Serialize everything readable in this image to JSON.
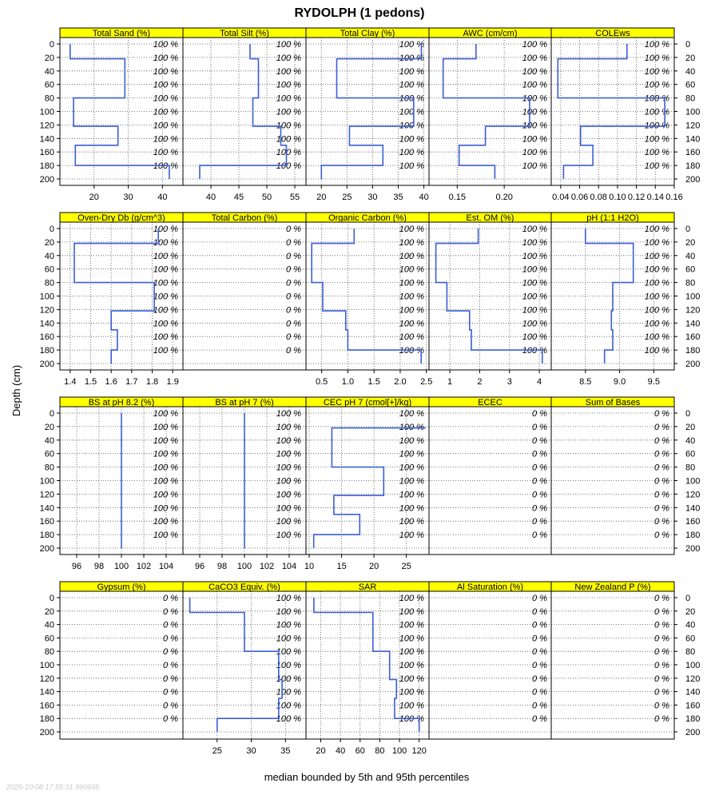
{
  "figure": {
    "title": "RYDOLPH (1 pedons)",
    "ylabel": "Depth (cm)",
    "xlabel": "median bounded by 5th and 95th percentiles",
    "timestamp": "2025-10-08 17:55:31.960695",
    "line_color": "#3a5fd6",
    "strip_color": "#ffff00"
  },
  "chart_data": {
    "type": "line",
    "depth_range": [
      0,
      200
    ],
    "depth_ticks": [
      0,
      20,
      40,
      60,
      80,
      100,
      120,
      140,
      160,
      180,
      200
    ],
    "pct_depths": [
      0,
      20,
      40,
      60,
      80,
      100,
      120,
      140,
      160,
      180
    ],
    "panels": [
      {
        "label": "Total Sand (%)",
        "pct": "100 %",
        "xlim": [
          10,
          46
        ],
        "ticks": [
          20,
          30,
          40
        ],
        "tick_labels": [
          "20",
          "30",
          "40"
        ],
        "profile": [
          [
            13,
            0
          ],
          [
            13,
            22
          ],
          [
            29,
            22
          ],
          [
            29,
            80
          ],
          [
            14,
            80
          ],
          [
            14,
            122
          ],
          [
            27,
            122
          ],
          [
            27,
            150
          ],
          [
            14.5,
            150
          ],
          [
            14.5,
            180
          ],
          [
            42,
            180
          ],
          [
            42,
            200
          ]
        ]
      },
      {
        "label": "Total Silt (%)",
        "pct": "100 %",
        "xlim": [
          35,
          57
        ],
        "ticks": [
          40,
          45,
          50,
          55
        ],
        "tick_labels": [
          "40",
          "45",
          "50",
          "55"
        ],
        "profile": [
          [
            47,
            0
          ],
          [
            47,
            22
          ],
          [
            48.5,
            22
          ],
          [
            48.5,
            80
          ],
          [
            47.5,
            80
          ],
          [
            47.5,
            122
          ],
          [
            52.5,
            122
          ],
          [
            52.5,
            150
          ],
          [
            53.5,
            150
          ],
          [
            53.5,
            180
          ],
          [
            38,
            180
          ],
          [
            38,
            200
          ]
        ]
      },
      {
        "label": "Total Clay (%)",
        "pct": "100 %",
        "xlim": [
          17,
          41
        ],
        "ticks": [
          20,
          25,
          30,
          35,
          40
        ],
        "tick_labels": [
          "20",
          "25",
          "30",
          "35",
          "40"
        ],
        "profile": [
          [
            39.5,
            0
          ],
          [
            39.5,
            22
          ],
          [
            23,
            22
          ],
          [
            23,
            80
          ],
          [
            38,
            80
          ],
          [
            38,
            122
          ],
          [
            25.5,
            122
          ],
          [
            25.5,
            150
          ],
          [
            32,
            150
          ],
          [
            32,
            180
          ],
          [
            20,
            180
          ],
          [
            20,
            200
          ]
        ]
      },
      {
        "label": "AWC (cm/cm)",
        "pct": "100 %",
        "xlim": [
          0.12,
          0.25
        ],
        "ticks": [
          0.15,
          0.2
        ],
        "tick_labels": [
          "0.15",
          "0.20"
        ],
        "profile": [
          [
            0.17,
            0
          ],
          [
            0.17,
            22
          ],
          [
            0.135,
            22
          ],
          [
            0.135,
            80
          ],
          [
            0.227,
            80
          ],
          [
            0.227,
            122
          ],
          [
            0.18,
            122
          ],
          [
            0.18,
            150
          ],
          [
            0.152,
            150
          ],
          [
            0.152,
            180
          ],
          [
            0.19,
            180
          ],
          [
            0.19,
            200
          ]
        ]
      },
      {
        "label": "COLEws",
        "pct": "100 %",
        "xlim": [
          0.03,
          0.16
        ],
        "ticks": [
          0.04,
          0.06,
          0.08,
          0.1,
          0.12,
          0.14,
          0.16
        ],
        "tick_labels": [
          "0.04",
          "0.06",
          "0.08",
          "0.10",
          "0.12",
          "0.14",
          "0.16"
        ],
        "profile": [
          [
            0.11,
            0
          ],
          [
            0.11,
            22
          ],
          [
            0.037,
            22
          ],
          [
            0.037,
            80
          ],
          [
            0.15,
            80
          ],
          [
            0.15,
            122
          ],
          [
            0.061,
            122
          ],
          [
            0.061,
            150
          ],
          [
            0.074,
            150
          ],
          [
            0.074,
            180
          ],
          [
            0.043,
            180
          ],
          [
            0.043,
            200
          ]
        ]
      },
      {
        "label": "Oven-Dry Db (g/cm^3)",
        "pct": "100 %",
        "xlim": [
          1.35,
          1.95
        ],
        "ticks": [
          1.4,
          1.5,
          1.6,
          1.7,
          1.8,
          1.9
        ],
        "tick_labels": [
          "1.4",
          "1.5",
          "1.6",
          "1.7",
          "1.8",
          "1.9"
        ],
        "profile": [
          [
            1.83,
            0
          ],
          [
            1.83,
            22
          ],
          [
            1.42,
            22
          ],
          [
            1.42,
            80
          ],
          [
            1.81,
            80
          ],
          [
            1.81,
            122
          ],
          [
            1.6,
            122
          ],
          [
            1.6,
            150
          ],
          [
            1.63,
            150
          ],
          [
            1.63,
            180
          ],
          [
            1.6,
            180
          ],
          [
            1.6,
            200
          ]
        ]
      },
      {
        "label": "Total Carbon (%)",
        "pct": "0 %",
        "xlim": [
          0,
          1
        ],
        "ticks": [],
        "tick_labels": [],
        "profile": []
      },
      {
        "label": "Organic Carbon (%)",
        "pct": "100 %",
        "xlim": [
          0.2,
          2.55
        ],
        "ticks": [
          0.5,
          1.0,
          1.5,
          2.0,
          2.5
        ],
        "tick_labels": [
          "0.5",
          "1.0",
          "1.5",
          "2.0",
          "2.5"
        ],
        "profile": [
          [
            1.12,
            0
          ],
          [
            1.12,
            22
          ],
          [
            0.31,
            22
          ],
          [
            0.31,
            80
          ],
          [
            0.52,
            80
          ],
          [
            0.52,
            122
          ],
          [
            0.96,
            122
          ],
          [
            0.96,
            150
          ],
          [
            1.0,
            150
          ],
          [
            1.0,
            180
          ],
          [
            2.4,
            180
          ],
          [
            2.4,
            200
          ]
        ]
      },
      {
        "label": "Est. OM (%)",
        "pct": "100 %",
        "xlim": [
          0.3,
          4.4
        ],
        "ticks": [
          1,
          2,
          3,
          4
        ],
        "tick_labels": [
          "1",
          "2",
          "3",
          "4"
        ],
        "profile": [
          [
            1.95,
            0
          ],
          [
            1.95,
            22
          ],
          [
            0.53,
            22
          ],
          [
            0.53,
            80
          ],
          [
            0.9,
            80
          ],
          [
            0.9,
            122
          ],
          [
            1.66,
            122
          ],
          [
            1.66,
            150
          ],
          [
            1.72,
            150
          ],
          [
            1.72,
            180
          ],
          [
            4.1,
            180
          ],
          [
            4.1,
            200
          ]
        ]
      },
      {
        "label": "pH (1:1 H2O)",
        "pct": "100 %",
        "xlim": [
          8.0,
          9.8
        ],
        "ticks": [
          8.5,
          9.0,
          9.5
        ],
        "tick_labels": [
          "8.5",
          "9.0",
          "9.5"
        ],
        "profile": [
          [
            8.5,
            0
          ],
          [
            8.5,
            22
          ],
          [
            9.2,
            22
          ],
          [
            9.2,
            80
          ],
          [
            8.9,
            80
          ],
          [
            8.9,
            122
          ],
          [
            8.88,
            122
          ],
          [
            8.88,
            150
          ],
          [
            8.9,
            150
          ],
          [
            8.9,
            180
          ],
          [
            8.78,
            180
          ],
          [
            8.78,
            200
          ]
        ]
      },
      {
        "label": "BS at pH 8.2 (%)",
        "pct": "100 %",
        "xlim": [
          94.5,
          105.5
        ],
        "ticks": [
          96,
          98,
          100,
          102,
          104
        ],
        "tick_labels": [
          "96",
          "98",
          "100",
          "102",
          "104"
        ],
        "profile": [
          [
            100,
            0
          ],
          [
            100,
            200
          ]
        ]
      },
      {
        "label": "BS at pH 7 (%)",
        "pct": "100 %",
        "xlim": [
          94.5,
          105.5
        ],
        "ticks": [
          96,
          98,
          100,
          102,
          104
        ],
        "tick_labels": [
          "96",
          "98",
          "100",
          "102",
          "104"
        ],
        "profile": [
          [
            100,
            0
          ],
          [
            100,
            200
          ]
        ]
      },
      {
        "label": "CEC pH 7 (cmol[+]/kg)",
        "pct": "100 %",
        "xlim": [
          9.5,
          28.5
        ],
        "ticks": [
          10,
          15,
          20,
          25
        ],
        "tick_labels": [
          "10",
          "15",
          "20",
          "25"
        ],
        "profile": [
          [
            28,
            22
          ],
          [
            13.5,
            22
          ],
          [
            13.5,
            80
          ],
          [
            21.5,
            80
          ],
          [
            21.5,
            122
          ],
          [
            13.8,
            122
          ],
          [
            13.8,
            150
          ],
          [
            17.8,
            150
          ],
          [
            17.8,
            180
          ],
          [
            10.7,
            180
          ],
          [
            10.7,
            200
          ]
        ]
      },
      {
        "label": "ECEC",
        "pct": "0 %",
        "xlim": [
          0,
          1
        ],
        "ticks": [],
        "tick_labels": [],
        "profile": []
      },
      {
        "label": "Sum of Bases",
        "pct": "0 %",
        "xlim": [
          0,
          1
        ],
        "ticks": [],
        "tick_labels": [],
        "profile": []
      },
      {
        "label": "Gypsum (%)",
        "pct": "0 %",
        "xlim": [
          0,
          1
        ],
        "ticks": [],
        "tick_labels": [],
        "profile": []
      },
      {
        "label": "CaCO3 Equiv. (%)",
        "pct": "100 %",
        "xlim": [
          20,
          38
        ],
        "ticks": [
          25,
          30,
          35
        ],
        "tick_labels": [
          "25",
          "30",
          "35"
        ],
        "profile": [
          [
            21,
            0
          ],
          [
            21,
            22
          ],
          [
            29,
            22
          ],
          [
            29,
            80
          ],
          [
            34,
            80
          ],
          [
            34,
            122
          ],
          [
            34.5,
            122
          ],
          [
            34.5,
            150
          ],
          [
            34,
            150
          ],
          [
            34,
            180
          ],
          [
            25,
            180
          ],
          [
            25,
            200
          ]
        ]
      },
      {
        "label": "SAR",
        "pct": "100 %",
        "xlim": [
          5,
          130
        ],
        "ticks": [
          20,
          40,
          60,
          80,
          100,
          120
        ],
        "tick_labels": [
          "20",
          "40",
          "60",
          "80",
          "100",
          "120"
        ],
        "profile": [
          [
            13,
            0
          ],
          [
            13,
            22
          ],
          [
            73,
            22
          ],
          [
            73,
            80
          ],
          [
            90,
            80
          ],
          [
            90,
            122
          ],
          [
            97,
            122
          ],
          [
            97,
            150
          ],
          [
            95,
            150
          ],
          [
            95,
            180
          ],
          [
            120,
            180
          ],
          [
            120,
            200
          ]
        ]
      },
      {
        "label": "Al Saturation (%)",
        "pct": "0 %",
        "xlim": [
          0,
          1
        ],
        "ticks": [],
        "tick_labels": [],
        "profile": []
      },
      {
        "label": "New Zealand P (%)",
        "pct": "0 %",
        "xlim": [
          0,
          1
        ],
        "ticks": [],
        "tick_labels": [],
        "profile": []
      }
    ]
  }
}
